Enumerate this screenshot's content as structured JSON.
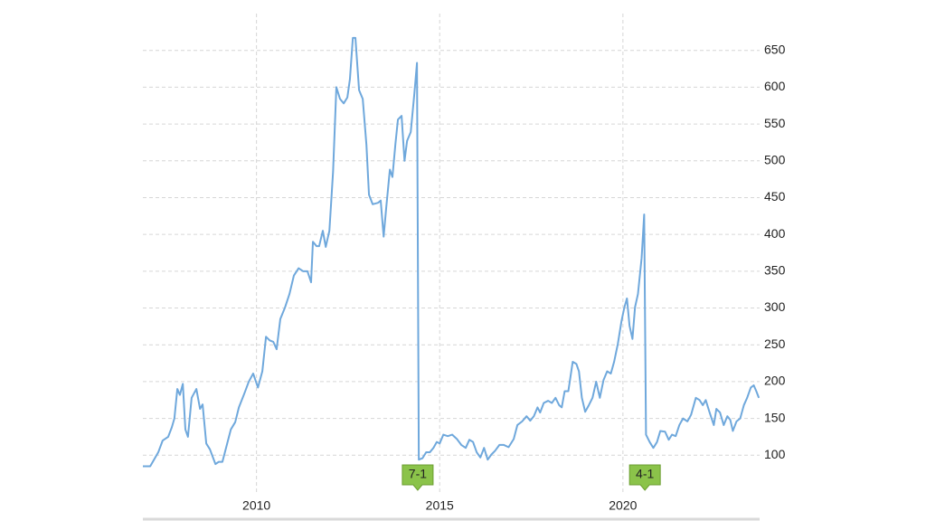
{
  "chart_data": {
    "type": "line",
    "color": "#6fa8dc",
    "grid": true,
    "xlim": [
      2006.9,
      2023.73
    ],
    "ylim": [
      50,
      700
    ],
    "xticks": [
      2010,
      2015,
      2020
    ],
    "yticks": [
      100,
      150,
      200,
      250,
      300,
      350,
      400,
      450,
      500,
      550,
      600,
      650
    ],
    "annotations": [
      {
        "label": "7-1",
        "x": 2014.4
      },
      {
        "label": "4-1",
        "x": 2020.6
      }
    ],
    "x": [
      2006.9,
      2007.1,
      2007.32,
      2007.44,
      2007.59,
      2007.69,
      2007.76,
      2007.84,
      2007.91,
      2007.99,
      2008.06,
      2008.13,
      2008.23,
      2008.36,
      2008.46,
      2008.53,
      2008.63,
      2008.73,
      2008.88,
      2008.97,
      2009.07,
      2009.17,
      2009.3,
      2009.42,
      2009.52,
      2009.67,
      2009.79,
      2009.91,
      2010.04,
      2010.16,
      2010.26,
      2010.36,
      2010.46,
      2010.55,
      2010.65,
      2010.78,
      2010.9,
      2011.02,
      2011.15,
      2011.27,
      2011.39,
      2011.49,
      2011.54,
      2011.64,
      2011.71,
      2011.81,
      2011.89,
      2011.99,
      2012.09,
      2012.18,
      2012.28,
      2012.38,
      2012.48,
      2012.55,
      2012.63,
      2012.7,
      2012.8,
      2012.9,
      2013.0,
      2013.07,
      2013.17,
      2013.32,
      2013.39,
      2013.47,
      2013.54,
      2013.64,
      2013.71,
      2013.79,
      2013.86,
      2013.96,
      2014.04,
      2014.11,
      2014.21,
      2014.31,
      2014.38,
      2014.43,
      2014.53,
      2014.63,
      2014.73,
      2014.83,
      2014.92,
      2015.0,
      2015.1,
      2015.22,
      2015.34,
      2015.47,
      2015.59,
      2015.71,
      2015.81,
      2015.91,
      2016.01,
      2016.11,
      2016.21,
      2016.31,
      2016.41,
      2016.51,
      2016.63,
      2016.75,
      2016.88,
      2017.02,
      2017.12,
      2017.25,
      2017.37,
      2017.47,
      2017.57,
      2017.67,
      2017.74,
      2017.84,
      2017.96,
      2018.06,
      2018.16,
      2018.26,
      2018.33,
      2018.41,
      2018.51,
      2018.63,
      2018.73,
      2018.8,
      2018.88,
      2018.97,
      2019.07,
      2019.17,
      2019.27,
      2019.37,
      2019.47,
      2019.57,
      2019.67,
      2019.76,
      2019.86,
      2019.96,
      2020.04,
      2020.11,
      2020.18,
      2020.26,
      2020.33,
      2020.41,
      2020.51,
      2020.58,
      2020.63,
      2020.73,
      2020.83,
      2020.93,
      2021.02,
      2021.15,
      2021.25,
      2021.34,
      2021.44,
      2021.54,
      2021.64,
      2021.76,
      2021.86,
      2021.99,
      2022.09,
      2022.18,
      2022.26,
      2022.36,
      2022.48,
      2022.55,
      2022.65,
      2022.75,
      2022.85,
      2022.93,
      2023.0,
      2023.1,
      2023.2,
      2023.3,
      2023.39,
      2023.49,
      2023.57,
      2023.64,
      2023.71
    ],
    "values": [
      85,
      85,
      104,
      120,
      125,
      138,
      150,
      190,
      182,
      197,
      135,
      125,
      178,
      190,
      163,
      169,
      116,
      108,
      88,
      91,
      91,
      110,
      135,
      145,
      165,
      184,
      200,
      211,
      192,
      214,
      261,
      256,
      254,
      244,
      285,
      301,
      319,
      344,
      354,
      350,
      350,
      335,
      390,
      384,
      384,
      405,
      383,
      405,
      485,
      600,
      584,
      578,
      586,
      611,
      667,
      667,
      596,
      584,
      522,
      454,
      441,
      443,
      446,
      397,
      436,
      488,
      478,
      522,
      556,
      561,
      500,
      527,
      539,
      592,
      633,
      94,
      96,
      104,
      104,
      110,
      118,
      116,
      128,
      126,
      128,
      122,
      114,
      110,
      121,
      118,
      104,
      97,
      110,
      94,
      101,
      106,
      114,
      114,
      111,
      122,
      141,
      146,
      153,
      147,
      153,
      165,
      158,
      171,
      174,
      171,
      178,
      168,
      165,
      187,
      187,
      227,
      224,
      214,
      178,
      159,
      168,
      178,
      200,
      178,
      202,
      214,
      211,
      227,
      251,
      282,
      301,
      313,
      276,
      258,
      301,
      319,
      368,
      427,
      128,
      118,
      110,
      118,
      133,
      132,
      121,
      128,
      126,
      141,
      150,
      146,
      155,
      178,
      175,
      168,
      175,
      159,
      141,
      163,
      158,
      141,
      153,
      148,
      133,
      146,
      150,
      168,
      178,
      192,
      195,
      187,
      178
    ]
  }
}
